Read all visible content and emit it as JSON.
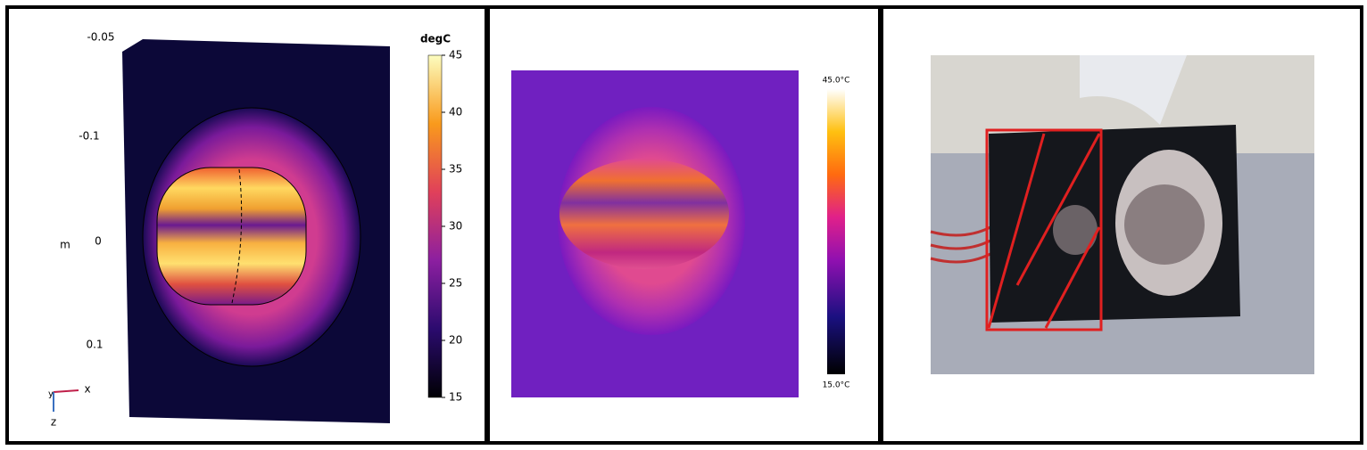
{
  "simulation": {
    "colorbar_unit": "degC",
    "colorbar_ticks": [
      15,
      20,
      25,
      30,
      35,
      40,
      45
    ],
    "axis_ticks": [
      "-0.05",
      "-0.1",
      "0",
      "0.1"
    ],
    "axis_unit": "m",
    "triad": {
      "x": "x",
      "y": "y",
      "z": "z"
    }
  },
  "thermal": {
    "max_label": "45.0°C",
    "min_label": "15.0°C"
  }
}
